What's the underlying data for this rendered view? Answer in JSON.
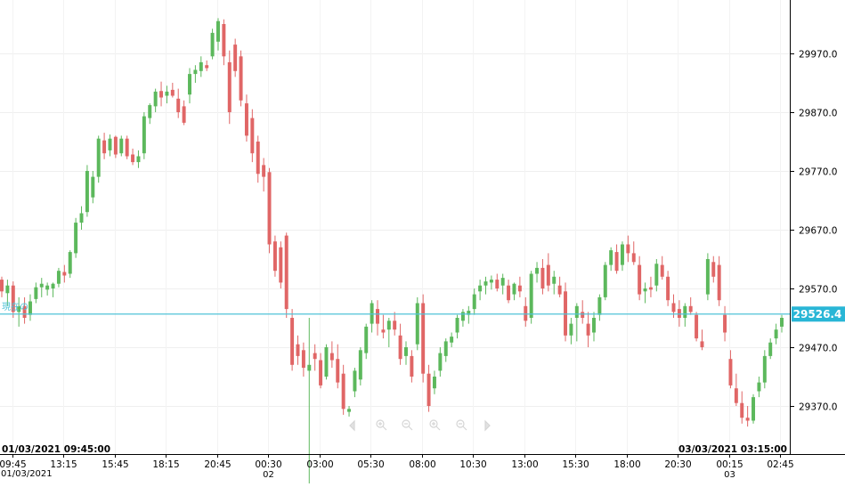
{
  "chart_data": {
    "type": "candlestick",
    "y_ticks": [
      29970.0,
      29870.0,
      29770.0,
      29670.0,
      29570.0,
      29470.0,
      29370.0
    ],
    "y_tick_labels": [
      "29970.0",
      "29870.0",
      "29770.0",
      "29670.0",
      "29570.0",
      "29470.0",
      "29370.0"
    ],
    "ylim": [
      29290,
      30055
    ],
    "x_tick_labels": [
      "09:45",
      "13:15",
      "15:45",
      "18:15",
      "20:45",
      "00:30",
      "03:00",
      "05:30",
      "08:00",
      "10:30",
      "13:00",
      "15:30",
      "18:00",
      "20:30",
      "00:15",
      "02:45"
    ],
    "x_sub_labels": {
      "00:30": "02",
      "00:15": "03"
    },
    "start_date_label": "01/03/2021",
    "range_start_label": "01/03/2021 09:45:00",
    "range_end_label": "03/03/2021 03:15:00",
    "current_price": 29526.4,
    "current_price_label": "29526.4",
    "current_line_label": "現在の",
    "up_color": "#5cb85c",
    "down_color": "#e06666",
    "candles": [
      [
        29585,
        29590,
        29555,
        29565
      ],
      [
        29562,
        29585,
        29540,
        29575
      ],
      [
        29575,
        29582,
        29520,
        29530
      ],
      [
        29530,
        29555,
        29505,
        29540
      ],
      [
        29540,
        29555,
        29510,
        29520
      ],
      [
        29525,
        29560,
        29515,
        29548
      ],
      [
        29552,
        29580,
        29545,
        29572
      ],
      [
        29572,
        29588,
        29555,
        29578
      ],
      [
        29568,
        29580,
        29558,
        29575
      ],
      [
        29570,
        29580,
        29555,
        29578
      ],
      [
        29578,
        29605,
        29572,
        29600
      ],
      [
        29598,
        29610,
        29580,
        29592
      ],
      [
        29595,
        29635,
        29588,
        29632
      ],
      [
        29630,
        29690,
        29622,
        29682
      ],
      [
        29682,
        29710,
        29670,
        29698
      ],
      [
        29700,
        29780,
        29692,
        29770
      ],
      [
        29725,
        29770,
        29715,
        29760
      ],
      [
        29760,
        29830,
        29750,
        29825
      ],
      [
        29822,
        29835,
        29790,
        29800
      ],
      [
        29805,
        29832,
        29795,
        29825
      ],
      [
        29828,
        29830,
        29792,
        29798
      ],
      [
        29800,
        29830,
        29795,
        29825
      ],
      [
        29825,
        29830,
        29790,
        29795
      ],
      [
        29798,
        29808,
        29780,
        29785
      ],
      [
        29785,
        29805,
        29775,
        29795
      ],
      [
        29800,
        29870,
        29790,
        29863
      ],
      [
        29860,
        29885,
        29850,
        29882
      ],
      [
        29880,
        29910,
        29870,
        29905
      ],
      [
        29906,
        29922,
        29880,
        29895
      ],
      [
        29898,
        29915,
        29885,
        29905
      ],
      [
        29908,
        29920,
        29895,
        29898
      ],
      [
        29893,
        29910,
        29860,
        29870
      ],
      [
        29880,
        29890,
        29848,
        29852
      ],
      [
        29900,
        29945,
        29885,
        29935
      ],
      [
        29935,
        29950,
        29920,
        29942
      ],
      [
        29940,
        29965,
        29930,
        29955
      ],
      [
        29950,
        29958,
        29940,
        29945
      ],
      [
        29965,
        30012,
        29960,
        30005
      ],
      [
        29990,
        30030,
        29975,
        30025
      ],
      [
        30020,
        30028,
        29950,
        29965
      ],
      [
        29955,
        29975,
        29850,
        29870
      ],
      [
        29985,
        29995,
        29930,
        29940
      ],
      [
        29965,
        29975,
        29880,
        29890
      ],
      [
        29885,
        29900,
        29820,
        29830
      ],
      [
        29860,
        29875,
        29785,
        29800
      ],
      [
        29820,
        29830,
        29750,
        29765
      ],
      [
        29780,
        29792,
        29735,
        29760
      ],
      [
        29768,
        29775,
        29630,
        29645
      ],
      [
        29650,
        29660,
        29590,
        29600
      ],
      [
        29640,
        29650,
        29570,
        29580
      ],
      [
        29660,
        29665,
        29520,
        29535
      ],
      [
        29520,
        29535,
        29430,
        29440
      ],
      [
        29475,
        29490,
        29440,
        29455
      ],
      [
        29465,
        29478,
        29420,
        29435
      ],
      [
        29430,
        29520,
        29235,
        29440
      ],
      [
        29460,
        29475,
        29430,
        29450
      ],
      [
        29448,
        29460,
        29400,
        29405
      ],
      [
        29420,
        29475,
        29415,
        29470
      ],
      [
        29460,
        29480,
        29435,
        29448
      ],
      [
        29450,
        29475,
        29400,
        29410
      ],
      [
        29425,
        29440,
        29355,
        29365
      ],
      [
        29360,
        29370,
        29352,
        29365
      ],
      [
        29395,
        29435,
        29385,
        29430
      ],
      [
        29415,
        29470,
        29405,
        29465
      ],
      [
        29460,
        29510,
        29450,
        29505
      ],
      [
        29510,
        29550,
        29495,
        29545
      ],
      [
        29535,
        29550,
        29490,
        29510
      ],
      [
        29500,
        29525,
        29485,
        29495
      ],
      [
        29500,
        29520,
        29470,
        29515
      ],
      [
        29515,
        29530,
        29490,
        29500
      ],
      [
        29490,
        29510,
        29440,
        29450
      ],
      [
        29455,
        29480,
        29440,
        29470
      ],
      [
        29455,
        29465,
        29410,
        29420
      ],
      [
        29475,
        29555,
        29465,
        29545
      ],
      [
        29545,
        29560,
        29410,
        29425
      ],
      [
        29425,
        29440,
        29360,
        29370
      ],
      [
        29400,
        29430,
        29390,
        29420
      ],
      [
        29430,
        29470,
        29420,
        29460
      ],
      [
        29455,
        29485,
        29445,
        29480
      ],
      [
        29478,
        29495,
        29470,
        29488
      ],
      [
        29495,
        29525,
        29485,
        29520
      ],
      [
        29515,
        29535,
        29505,
        29530
      ],
      [
        29525,
        29540,
        29510,
        29532
      ],
      [
        29535,
        29570,
        29525,
        29560
      ],
      [
        29565,
        29585,
        29550,
        29575
      ],
      [
        29575,
        29590,
        29560,
        29582
      ],
      [
        29580,
        29592,
        29568,
        29585
      ],
      [
        29585,
        29595,
        29565,
        29570
      ],
      [
        29575,
        29595,
        29560,
        29588
      ],
      [
        29575,
        29585,
        29545,
        29550
      ],
      [
        29560,
        29580,
        29550,
        29578
      ],
      [
        29575,
        29590,
        29555,
        29565
      ],
      [
        29540,
        29555,
        29505,
        29515
      ],
      [
        29520,
        29600,
        29510,
        29595
      ],
      [
        29595,
        29615,
        29580,
        29605
      ],
      [
        29605,
        29620,
        29560,
        29570
      ],
      [
        29610,
        29630,
        29565,
        29575
      ],
      [
        29578,
        29600,
        29560,
        29590
      ],
      [
        29575,
        29590,
        29555,
        29560
      ],
      [
        29565,
        29580,
        29480,
        29490
      ],
      [
        29490,
        29520,
        29475,
        29510
      ],
      [
        29520,
        29545,
        29480,
        29540
      ],
      [
        29530,
        29550,
        29510,
        29520
      ],
      [
        29510,
        29530,
        29470,
        29490
      ],
      [
        29495,
        29530,
        29480,
        29520
      ],
      [
        29525,
        29560,
        29515,
        29555
      ],
      [
        29555,
        29615,
        29550,
        29610
      ],
      [
        29610,
        29640,
        29600,
        29635
      ],
      [
        29632,
        29645,
        29595,
        29600
      ],
      [
        29610,
        29650,
        29600,
        29645
      ],
      [
        29645,
        29660,
        29615,
        29630
      ],
      [
        29630,
        29650,
        29610,
        29615
      ],
      [
        29610,
        29625,
        29550,
        29560
      ],
      [
        29565,
        29580,
        29545,
        29570
      ],
      [
        29572,
        29590,
        29555,
        29568
      ],
      [
        29575,
        29620,
        29565,
        29612
      ],
      [
        29610,
        29625,
        29585,
        29590
      ],
      [
        29590,
        29600,
        29540,
        29550
      ],
      [
        29545,
        29560,
        29520,
        29530
      ],
      [
        29535,
        29550,
        29505,
        29520
      ],
      [
        29520,
        29545,
        29505,
        29540
      ],
      [
        29540,
        29555,
        29525,
        29530
      ],
      [
        29525,
        29530,
        29480,
        29485
      ],
      [
        29480,
        29500,
        29465,
        29470
      ],
      [
        29560,
        29630,
        29550,
        29620
      ],
      [
        29615,
        29625,
        29580,
        29590
      ],
      [
        29610,
        29625,
        29540,
        29550
      ],
      [
        29525,
        29540,
        29480,
        29495
      ],
      [
        29450,
        29465,
        29400,
        29405
      ],
      [
        29400,
        29425,
        29370,
        29375
      ],
      [
        29375,
        29395,
        29340,
        29350
      ],
      [
        29350,
        29370,
        29335,
        29345
      ],
      [
        29345,
        29390,
        29340,
        29385
      ],
      [
        29395,
        29420,
        29385,
        29410
      ],
      [
        29410,
        29465,
        29400,
        29455
      ],
      [
        29455,
        29485,
        29450,
        29478
      ],
      [
        29485,
        29510,
        29475,
        29500
      ],
      [
        29505,
        29525,
        29495,
        29520
      ]
    ]
  }
}
